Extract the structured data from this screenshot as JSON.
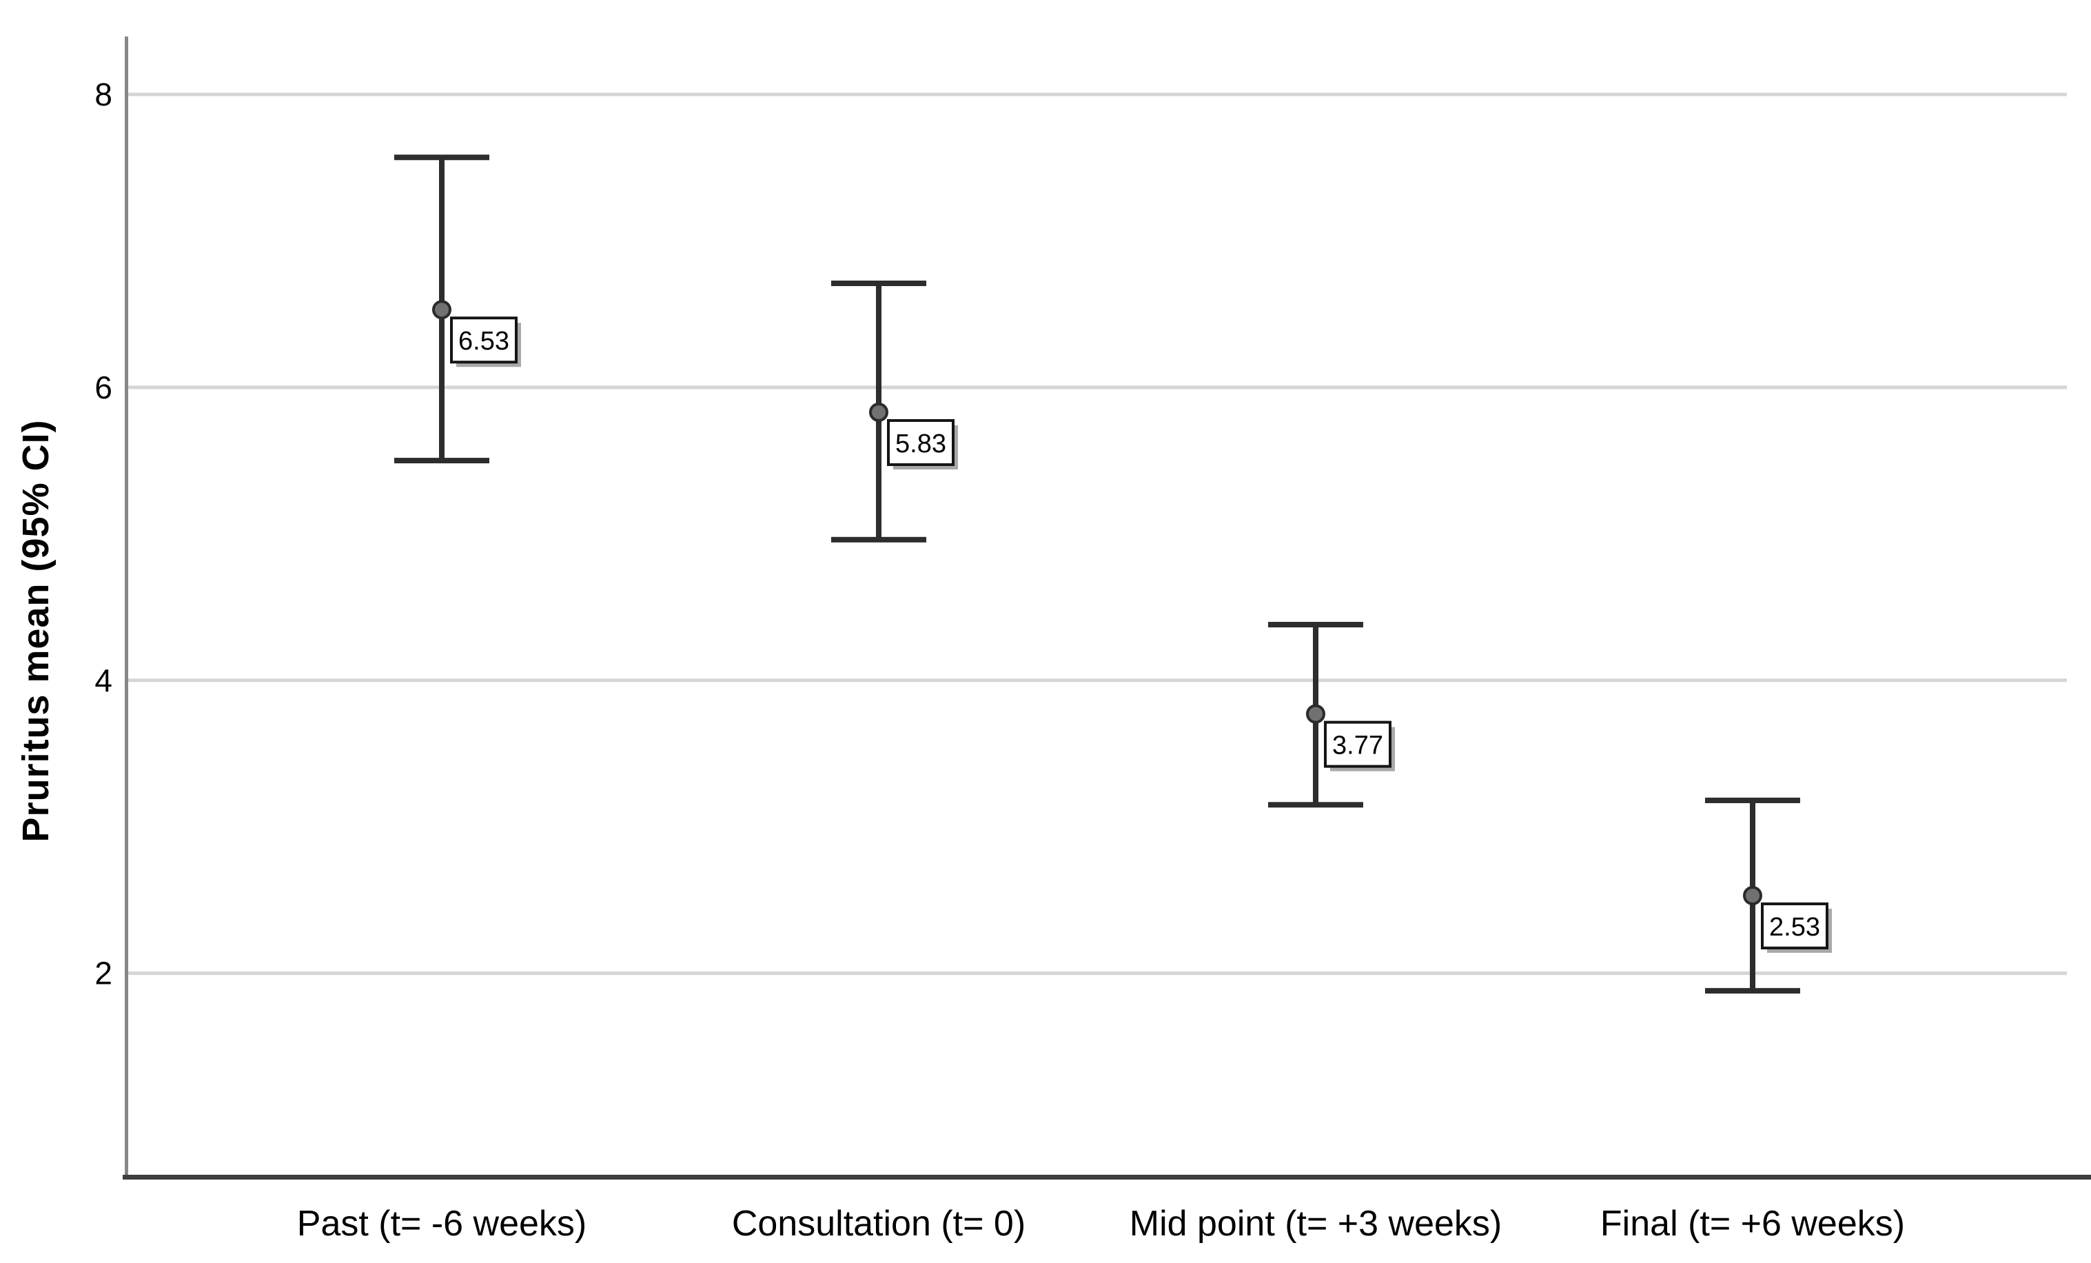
{
  "chart_data": {
    "type": "scatter",
    "subtype": "error-bar chart (mean with 95% confidence interval)",
    "title": "",
    "xlabel": "",
    "ylabel": "Pruritus mean (95% CI)",
    "categories": [
      "Past (t= -6 weeks)",
      "Consultation (t= 0)",
      "Mid point (t= +3 weeks)",
      "Final (t= +6 weeks)"
    ],
    "series": [
      {
        "name": "Pruritus mean",
        "means": [
          6.53,
          5.83,
          3.77,
          2.53
        ],
        "ci_low": [
          5.5,
          4.96,
          3.15,
          1.88
        ],
        "ci_high": [
          7.57,
          6.71,
          4.38,
          3.18
        ]
      }
    ],
    "point_labels": [
      "6.53",
      "5.83",
      "3.77",
      "2.53"
    ],
    "yticks": [
      2,
      4,
      6,
      8
    ],
    "ylim": [
      0.61,
      8.4
    ],
    "grid": "horizontal gridlines at y-ticks only",
    "legend": "none",
    "colors": {
      "background": "#ffffff",
      "gridline": "#d5d5d5",
      "y_axis_line": "#878787",
      "x_axis_line": "#3e3e3e",
      "error_bar": "#2d2d2d",
      "marker_fill": "#717171",
      "marker_stroke": "#2b2b2b",
      "label_box_fill": "#ffffff",
      "label_box_border": "#141414",
      "label_box_shadow": "#a8a8a8",
      "text": "#000000"
    }
  }
}
